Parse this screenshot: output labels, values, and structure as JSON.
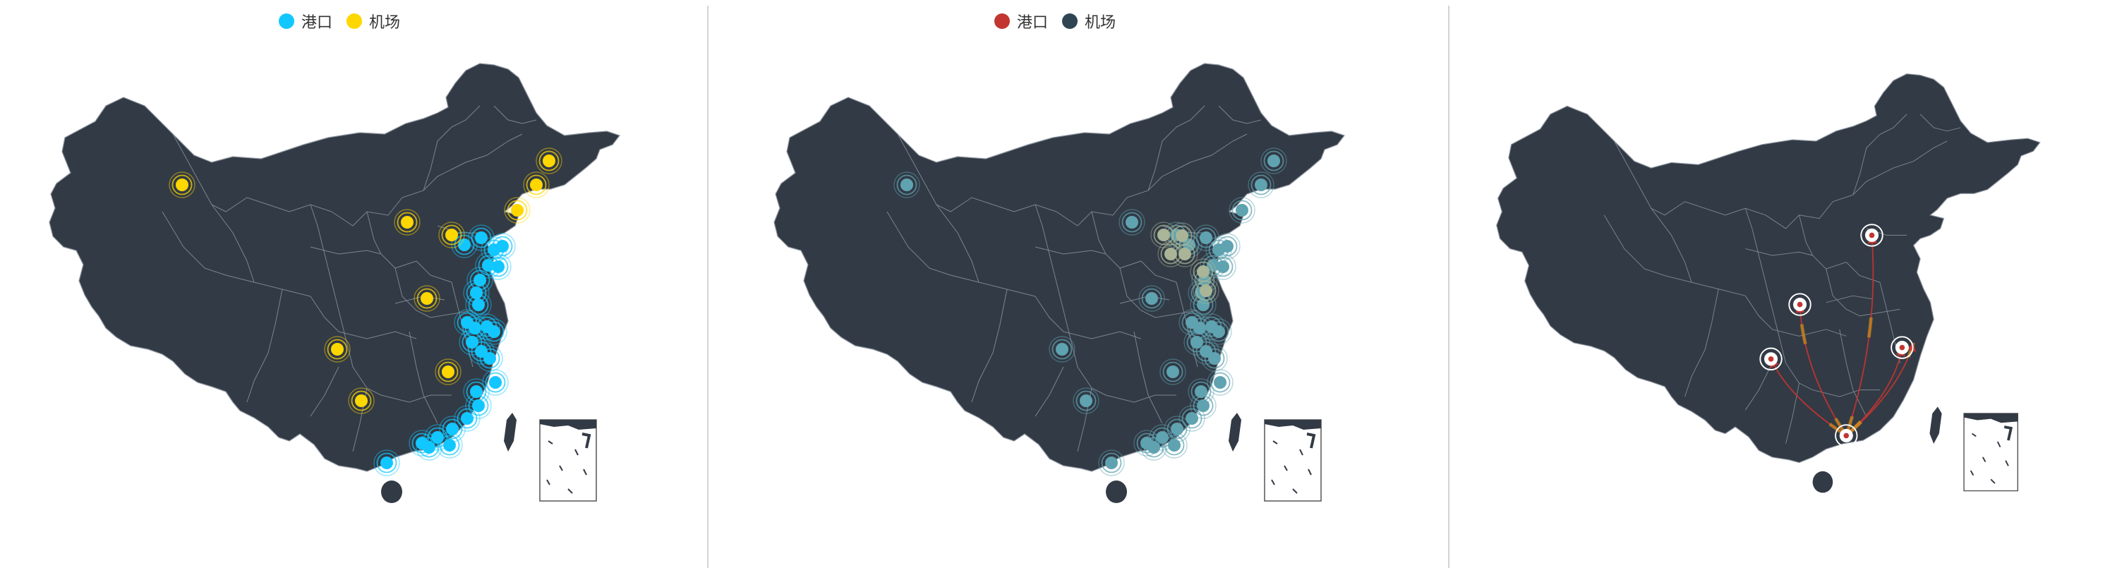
{
  "colors": {
    "land": "#323a45",
    "border": "#8a929c",
    "port_blue": "#12c7ff",
    "airport_yellow": "#ffd700",
    "port_red": "#c23531",
    "airport_dark": "#2f4554",
    "teal": "#5fa3b1",
    "olive": "#a9b596",
    "flow": "#e8a413",
    "flow_head": "#c23531"
  },
  "panels": [
    {
      "legend": [
        {
          "label": "港口",
          "color": "#12c7ff"
        },
        {
          "label": "机场",
          "color": "#ffd700"
        }
      ]
    },
    {
      "legend": [
        {
          "label": "港口",
          "color": "#c23531"
        },
        {
          "label": "机场",
          "color": "#2f4554"
        }
      ]
    },
    {
      "legend": []
    }
  ],
  "map_icons": {
    "inset": "south-china-sea-inset",
    "effect": "ripple-scatter",
    "lines": "flow-lines"
  }
}
